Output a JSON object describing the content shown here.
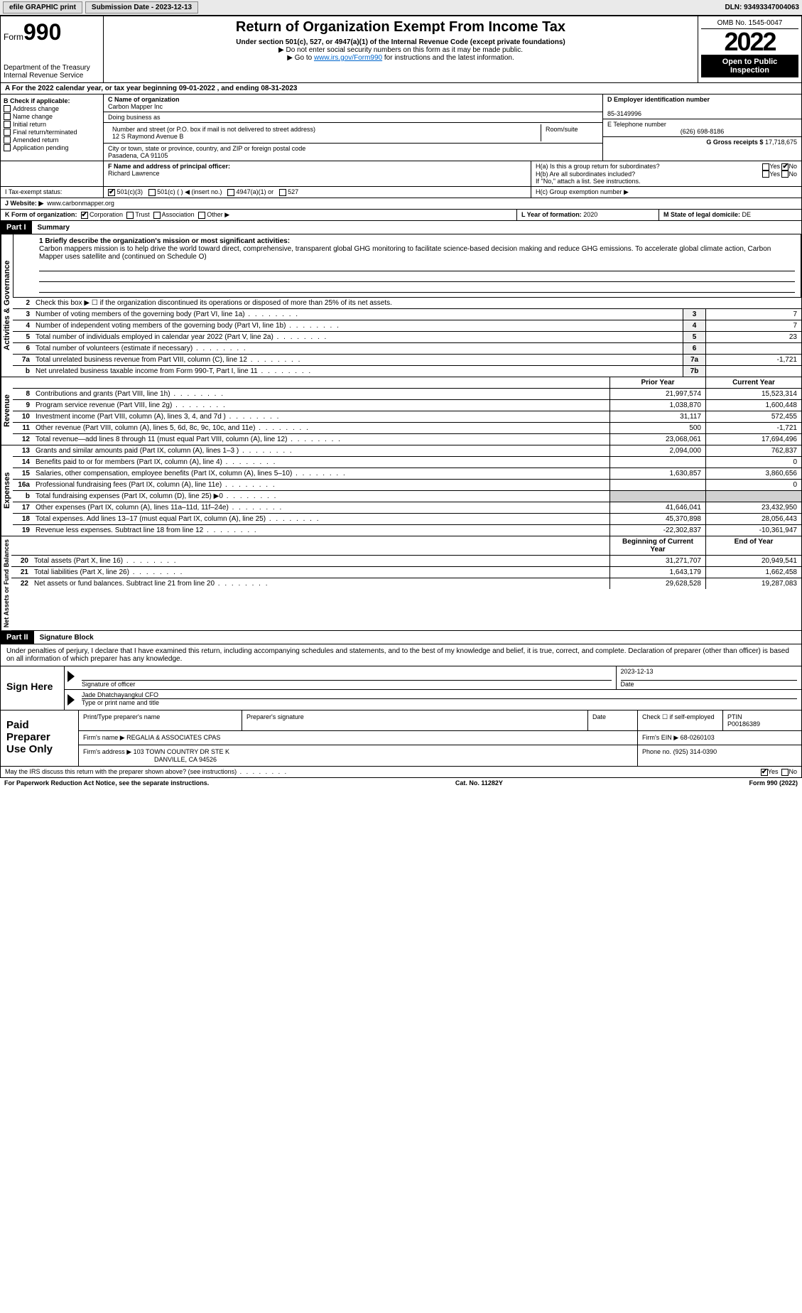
{
  "topbar": {
    "efile_label": "efile GRAPHIC print",
    "submission_label": "Submission Date - 2023-12-13",
    "dln": "DLN: 93493347004063"
  },
  "header": {
    "form_word": "Form",
    "form_num": "990",
    "title": "Return of Organization Exempt From Income Tax",
    "subtitle": "Under section 501(c), 527, or 4947(a)(1) of the Internal Revenue Code (except private foundations)",
    "note_ssn": "▶ Do not enter social security numbers on this form as it may be made public.",
    "note_goto_pre": "▶ Go to ",
    "note_goto_link": "www.irs.gov/Form990",
    "note_goto_post": " for instructions and the latest information.",
    "dept": "Department of the Treasury",
    "irs": "Internal Revenue Service",
    "omb": "OMB No. 1545-0047",
    "year": "2022",
    "open": "Open to Public Inspection"
  },
  "row_a": "A For the 2022 calendar year, or tax year beginning 09-01-2022   , and ending 08-31-2023",
  "sec_b": {
    "title": "B Check if applicable:",
    "items": [
      "Address change",
      "Name change",
      "Initial return",
      "Final return/terminated",
      "Amended return",
      "Application pending"
    ]
  },
  "sec_c": {
    "label_name": "C Name of organization",
    "org_name": "Carbon Mapper Inc",
    "dba_label": "Doing business as",
    "dba": "",
    "addr_label": "Number and street (or P.O. box if mail is not delivered to street address)",
    "room_label": "Room/suite",
    "addr": "12 S Raymond Avenue B",
    "city_label": "City or town, state or province, country, and ZIP or foreign postal code",
    "city": "Pasadena, CA  91105"
  },
  "sec_d": {
    "label": "D Employer identification number",
    "value": "85-3149996"
  },
  "sec_e": {
    "label": "E Telephone number",
    "value": "(626) 698-8186"
  },
  "sec_g": {
    "label": "G Gross receipts $",
    "value": "17,718,675"
  },
  "sec_f": {
    "label": "F Name and address of principal officer:",
    "name": "Richard Lawrence"
  },
  "sec_h": {
    "ha": "H(a)  Is this a group return for subordinates?",
    "hb": "H(b)  Are all subordinates included?",
    "hb_note": "If \"No,\" attach a list. See instructions.",
    "hc": "H(c)  Group exemption number ▶",
    "yes": "Yes",
    "no": "No"
  },
  "sec_i": {
    "label": "I   Tax-exempt status:",
    "opts": [
      "501(c)(3)",
      "501(c) (  ) ◀ (insert no.)",
      "4947(a)(1) or",
      "527"
    ]
  },
  "sec_j": {
    "label": "J   Website: ▶",
    "value": "www.carbonmapper.org"
  },
  "sec_k": {
    "label": "K Form of organization:",
    "opts": [
      "Corporation",
      "Trust",
      "Association",
      "Other ▶"
    ]
  },
  "sec_l": {
    "label": "L Year of formation:",
    "value": "2020"
  },
  "sec_m": {
    "label": "M State of legal domicile:",
    "value": "DE"
  },
  "part1": {
    "label": "Part I",
    "title": "Summary"
  },
  "mission": {
    "label": "1  Briefly describe the organization's mission or most significant activities:",
    "text": "Carbon mappers mission is to help drive the world toward direct, comprehensive, transparent global GHG monitoring to facilitate science-based decision making and reduce GHG emissions. To accelerate global climate action, Carbon Mapper uses satellite and (continued on Schedule O)"
  },
  "governance": {
    "vert": "Activities & Governance",
    "line2": "Check this box ▶ ☐  if the organization discontinued its operations or disposed of more than 25% of its net assets.",
    "rows": [
      {
        "n": "3",
        "d": "Number of voting members of the governing body (Part VI, line 1a)",
        "b": "3",
        "v": "7"
      },
      {
        "n": "4",
        "d": "Number of independent voting members of the governing body (Part VI, line 1b)",
        "b": "4",
        "v": "7"
      },
      {
        "n": "5",
        "d": "Total number of individuals employed in calendar year 2022 (Part V, line 2a)",
        "b": "5",
        "v": "23"
      },
      {
        "n": "6",
        "d": "Total number of volunteers (estimate if necessary)",
        "b": "6",
        "v": ""
      },
      {
        "n": "7a",
        "d": "Total unrelated business revenue from Part VIII, column (C), line 12",
        "b": "7a",
        "v": "-1,721"
      },
      {
        "n": "b",
        "d": "Net unrelated business taxable income from Form 990-T, Part I, line 11",
        "b": "7b",
        "v": ""
      }
    ]
  },
  "revenue": {
    "vert": "Revenue",
    "head_prior": "Prior Year",
    "head_curr": "Current Year",
    "rows": [
      {
        "n": "8",
        "d": "Contributions and grants (Part VIII, line 1h)",
        "p": "21,997,574",
        "c": "15,523,314"
      },
      {
        "n": "9",
        "d": "Program service revenue (Part VIII, line 2g)",
        "p": "1,038,870",
        "c": "1,600,448"
      },
      {
        "n": "10",
        "d": "Investment income (Part VIII, column (A), lines 3, 4, and 7d )",
        "p": "31,117",
        "c": "572,455"
      },
      {
        "n": "11",
        "d": "Other revenue (Part VIII, column (A), lines 5, 6d, 8c, 9c, 10c, and 11e)",
        "p": "500",
        "c": "-1,721"
      },
      {
        "n": "12",
        "d": "Total revenue—add lines 8 through 11 (must equal Part VIII, column (A), line 12)",
        "p": "23,068,061",
        "c": "17,694,496"
      }
    ]
  },
  "expenses": {
    "vert": "Expenses",
    "rows": [
      {
        "n": "13",
        "d": "Grants and similar amounts paid (Part IX, column (A), lines 1–3 )",
        "p": "2,094,000",
        "c": "762,837"
      },
      {
        "n": "14",
        "d": "Benefits paid to or for members (Part IX, column (A), line 4)",
        "p": "",
        "c": "0"
      },
      {
        "n": "15",
        "d": "Salaries, other compensation, employee benefits (Part IX, column (A), lines 5–10)",
        "p": "1,630,857",
        "c": "3,860,656"
      },
      {
        "n": "16a",
        "d": "Professional fundraising fees (Part IX, column (A), line 11e)",
        "p": "",
        "c": "0"
      },
      {
        "n": "b",
        "d": "Total fundraising expenses (Part IX, column (D), line 25) ▶0",
        "p": "",
        "c": "",
        "shaded": true
      },
      {
        "n": "17",
        "d": "Other expenses (Part IX, column (A), lines 11a–11d, 11f–24e)",
        "p": "41,646,041",
        "c": "23,432,950"
      },
      {
        "n": "18",
        "d": "Total expenses. Add lines 13–17 (must equal Part IX, column (A), line 25)",
        "p": "45,370,898",
        "c": "28,056,443"
      },
      {
        "n": "19",
        "d": "Revenue less expenses. Subtract line 18 from line 12",
        "p": "-22,302,837",
        "c": "-10,361,947"
      }
    ]
  },
  "netassets": {
    "vert": "Net Assets or Fund Balances",
    "head_beg": "Beginning of Current Year",
    "head_end": "End of Year",
    "rows": [
      {
        "n": "20",
        "d": "Total assets (Part X, line 16)",
        "p": "31,271,707",
        "c": "20,949,541"
      },
      {
        "n": "21",
        "d": "Total liabilities (Part X, line 26)",
        "p": "1,643,179",
        "c": "1,662,458"
      },
      {
        "n": "22",
        "d": "Net assets or fund balances. Subtract line 21 from line 20",
        "p": "29,628,528",
        "c": "19,287,083"
      }
    ]
  },
  "part2": {
    "label": "Part II",
    "title": "Signature Block"
  },
  "sig": {
    "decl": "Under penalties of perjury, I declare that I have examined this return, including accompanying schedules and statements, and to the best of my knowledge and belief, it is true, correct, and complete. Declaration of preparer (other than officer) is based on all information of which preparer has any knowledge.",
    "sign_here": "Sign Here",
    "sig_officer": "Signature of officer",
    "date": "Date",
    "date_val": "2023-12-13",
    "name_title": "Jade Dhatchayangkul CFO",
    "type_label": "Type or print name and title"
  },
  "prep": {
    "title": "Paid Preparer Use Only",
    "print_name_label": "Print/Type preparer's name",
    "sig_label": "Preparer's signature",
    "date_label": "Date",
    "check_label": "Check ☐ if self-employed",
    "ptin_label": "PTIN",
    "ptin": "P00186389",
    "firm_name_label": "Firm's name   ▶",
    "firm_name": "REGALIA & ASSOCIATES CPAS",
    "firm_ein_label": "Firm's EIN ▶",
    "firm_ein": "68-0260103",
    "firm_addr_label": "Firm's address ▶",
    "firm_addr1": "103 TOWN COUNTRY DR STE K",
    "firm_addr2": "DANVILLE, CA  94526",
    "phone_label": "Phone no.",
    "phone": "(925) 314-0390"
  },
  "discuss": {
    "text": "May the IRS discuss this return with the preparer shown above? (see instructions)",
    "yes": "Yes",
    "no": "No"
  },
  "footer": {
    "pra": "For Paperwork Reduction Act Notice, see the separate instructions.",
    "cat": "Cat. No. 11282Y",
    "form": "Form 990 (2022)"
  }
}
